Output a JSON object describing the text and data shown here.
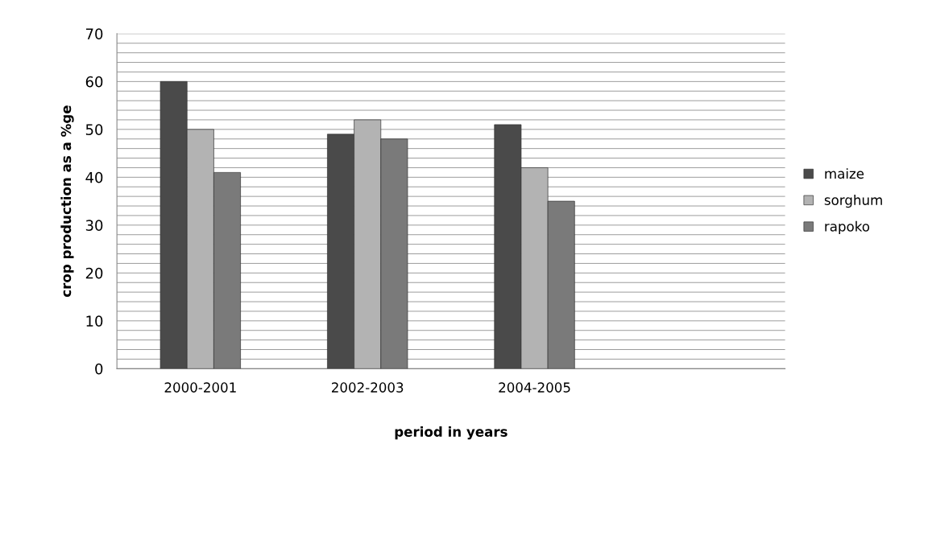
{
  "chart_data": {
    "type": "bar",
    "xlabel": "period in years",
    "ylabel": "crop production as a %ge",
    "categories": [
      "2000-2001",
      "2002-2003",
      "2004-2005",
      null
    ],
    "series": [
      {
        "name": "maize",
        "color": "#4a4a4a",
        "values": [
          60,
          49,
          51,
          null
        ]
      },
      {
        "name": "sorghum",
        "color": "#b3b3b3",
        "values": [
          50,
          52,
          42,
          null
        ]
      },
      {
        "name": "rapoko",
        "color": "#7a7a7a",
        "values": [
          41,
          48,
          35,
          null
        ]
      }
    ],
    "ylim": [
      0,
      70
    ],
    "yticks": [
      0,
      {
        "value": 2,
        "label": null
      },
      {
        "value": 4,
        "label": null
      },
      {
        "value": 6,
        "label": null
      },
      {
        "value": 8,
        "label": null
      },
      10,
      {
        "value": 12,
        "label": null
      },
      {
        "value": 14,
        "label": null
      },
      {
        "value": 16,
        "label": null
      },
      {
        "value": 18,
        "label": null
      },
      20,
      {
        "value": 22,
        "label": null
      },
      {
        "value": 24,
        "label": null
      },
      {
        "value": 26,
        "label": null
      },
      {
        "value": 28,
        "label": null
      },
      30,
      {
        "value": 32,
        "label": null
      },
      {
        "value": 34,
        "label": null
      },
      {
        "value": 36,
        "label": null
      },
      {
        "value": 38,
        "label": null
      },
      40,
      {
        "value": 42,
        "label": null
      },
      {
        "value": 44,
        "label": null
      },
      {
        "value": 46,
        "label": null
      },
      {
        "value": 48,
        "label": null
      },
      50,
      {
        "value": 52,
        "label": null
      },
      {
        "value": 54,
        "label": null
      },
      {
        "value": 56,
        "label": null
      },
      {
        "value": 58,
        "label": null
      },
      60,
      {
        "value": 62,
        "label": null
      },
      {
        "value": 64,
        "label": null
      },
      {
        "value": 66,
        "label": null
      },
      {
        "value": 68,
        "label": null
      },
      70
    ],
    "grid": "y",
    "legend": "right"
  }
}
